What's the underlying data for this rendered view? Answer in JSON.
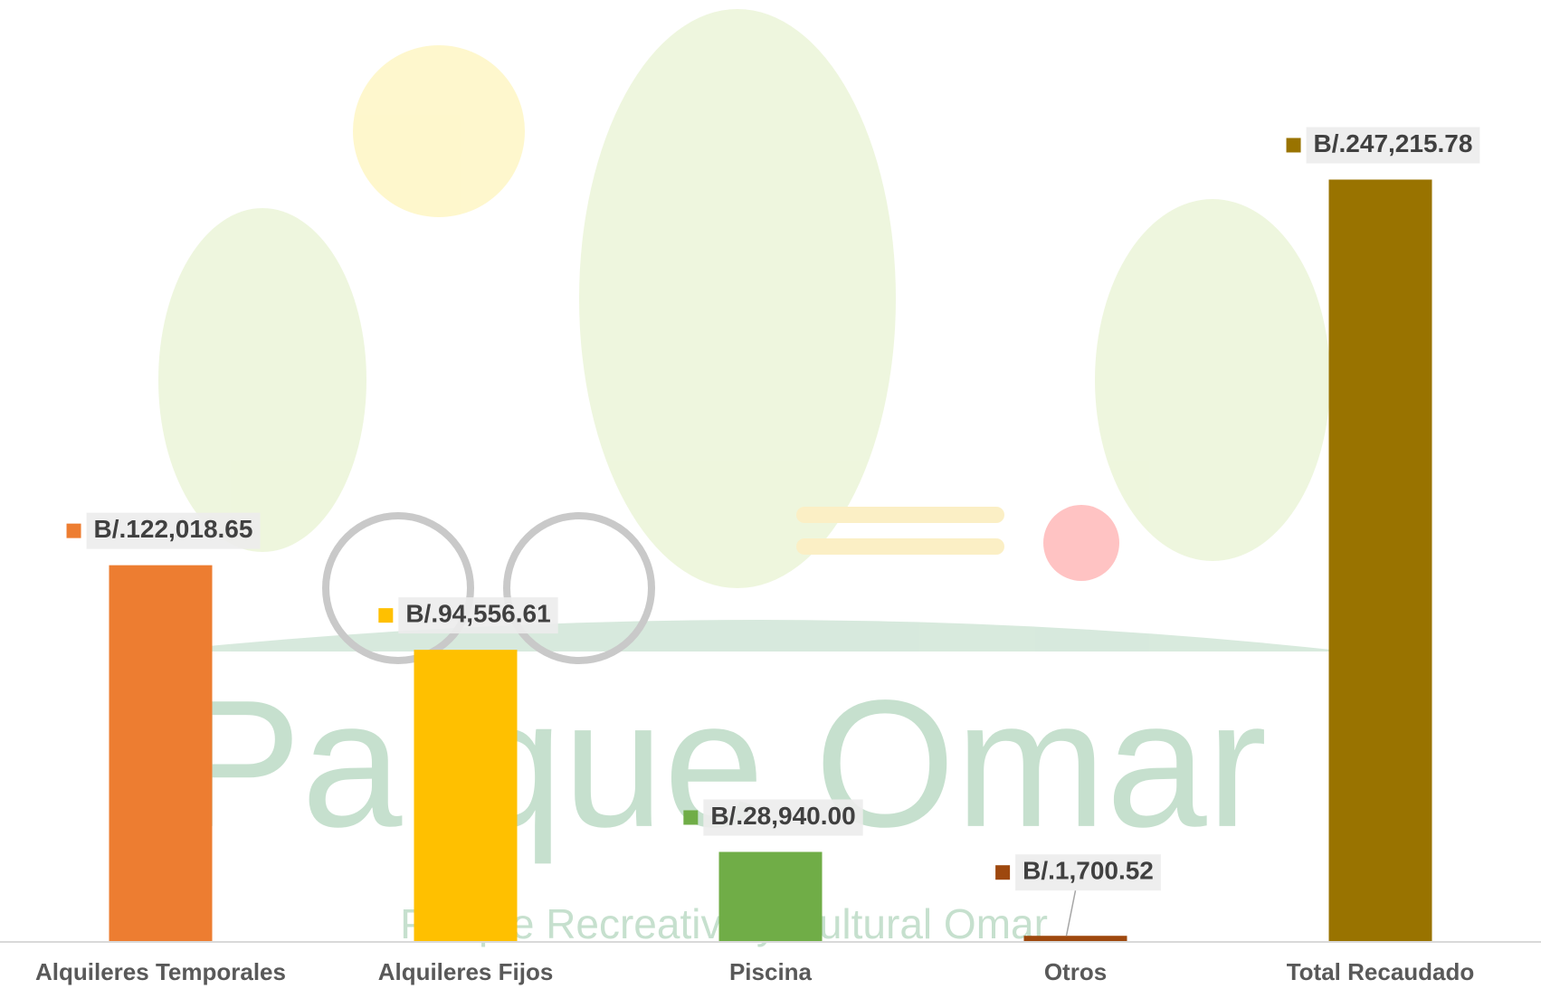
{
  "chart_data": {
    "type": "bar",
    "categories": [
      "Alquileres Temporales",
      "Alquileres Fijos",
      "Piscina",
      "Otros",
      "Total Recaudado"
    ],
    "values": [
      122018.65,
      94556.61,
      28940.0,
      1700.52,
      247215.78
    ],
    "value_labels": [
      "B/.122,018.65",
      "B/.94,556.61",
      "B/.28,940.00",
      "B/.1,700.52",
      "B/.247,215.78"
    ],
    "colors": [
      "#ed7d31",
      "#ffc000",
      "#70ad47",
      "#9e480e",
      "#997300"
    ],
    "ylim": [
      0,
      250000
    ]
  },
  "watermark": {
    "title": "Parque Omar",
    "subtitle": "Parque Recreativo y Cultural Omar"
  }
}
